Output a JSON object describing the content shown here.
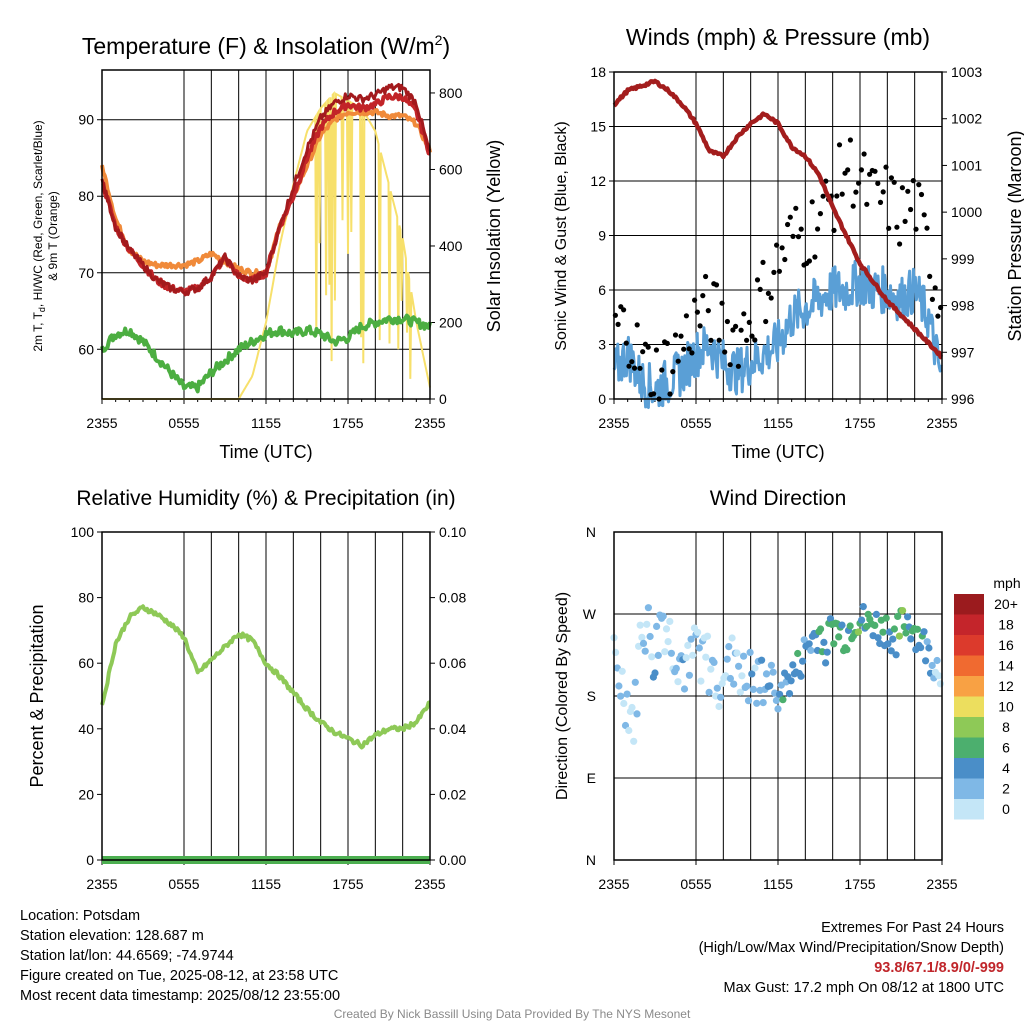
{
  "colors": {
    "red": "#c22428",
    "dark_red": "#a31a1d",
    "orange": "#f08a3a",
    "green": "#4cae41",
    "yellow": "#f7e06b",
    "blue": "#5a9fd6",
    "maroon": "#a31d1d",
    "black": "#000000",
    "rh_green": "#8ec957",
    "precip_green": "#4caf50"
  },
  "x_tick_labels": [
    "2355",
    "0555",
    "1155",
    "1755",
    "2355"
  ],
  "panels": {
    "temperature": {
      "title_main": "Temperature (F) & Insolation (W/m",
      "title_sup": "2",
      "title_end": ")",
      "xlabel": "Time (UTC)",
      "ylabel_line1": "2m T, T",
      "ylabel_sub": "d",
      "ylabel_line1_end": ", HI/WC (Red, Green, Scarlet/Blue)",
      "ylabel_line2": "& 9m T (Orange)",
      "ylabel_right": "Solar Insolation (Yellow)",
      "y_ticks": [
        "60",
        "70",
        "80",
        "90"
      ],
      "y2_ticks": [
        "0",
        "200",
        "400",
        "600",
        "800"
      ]
    },
    "winds": {
      "title": "Winds (mph) & Pressure (mb)",
      "xlabel": "Time (UTC)",
      "ylabel": "Sonic Wind & Gust (Blue, Black)",
      "ylabel_right": "Station Pressure (Maroon)",
      "y_ticks": [
        "0",
        "3",
        "6",
        "9",
        "12",
        "15",
        "18"
      ],
      "y2_ticks": [
        "996",
        "997",
        "998",
        "999",
        "1000",
        "1001",
        "1002",
        "1003"
      ]
    },
    "humidity": {
      "title": "Relative Humidity (%) & Precipitation (in)",
      "ylabel": "Percent & Precipitation",
      "y_ticks": [
        "0",
        "20",
        "40",
        "60",
        "80",
        "100"
      ],
      "y2_ticks": [
        "0.00",
        "0.02",
        "0.04",
        "0.06",
        "0.08",
        "0.10"
      ]
    },
    "direction": {
      "title": "Wind Direction",
      "ylabel": "Direction (Colored By Speed)",
      "y_ticks": [
        "N",
        "E",
        "S",
        "W",
        "N"
      ],
      "colorbar_title": "mph",
      "colorbar_labels": [
        "20+",
        "18",
        "16",
        "14",
        "12",
        "10",
        "8",
        "6",
        "4",
        "2",
        "0"
      ],
      "colorbar_colors": [
        "#9b1b1e",
        "#c4252b",
        "#dc3a2c",
        "#f06a30",
        "#f8a144",
        "#ecde5e",
        "#8ec957",
        "#4caf6e",
        "#4a8ec8",
        "#7fb8e6",
        "#c4e6f7"
      ]
    }
  },
  "chart_data": [
    {
      "type": "line",
      "title": "Temperature (F) & Insolation (W/m2)",
      "xlabel": "Time (UTC)",
      "ylabel": "2m T, Td, HI/WC (Red, Green, Scarlet/Blue) & 9m T (Orange)",
      "ylabel_right": "Solar Insolation (Yellow)",
      "x_hours": [
        0,
        1,
        2,
        3,
        4,
        5,
        6,
        7,
        8,
        9,
        10,
        11,
        12,
        13,
        14,
        15,
        16,
        17,
        18,
        19,
        20,
        21,
        22,
        23,
        24
      ],
      "ylim": [
        53.5,
        96.5
      ],
      "y2lim": [
        0,
        860
      ],
      "series": [
        {
          "values": [
            82,
            76,
            73,
            71,
            69,
            68,
            67.5,
            68,
            69.5,
            72,
            69.5,
            69,
            70,
            76,
            80,
            85,
            89,
            91,
            92,
            91.5,
            92,
            93,
            93,
            91,
            85.5
          ]
        },
        {
          "values": [
            84,
            77,
            73,
            71.5,
            71,
            71,
            71,
            71.5,
            72.5,
            71.5,
            70.5,
            70,
            70,
            76,
            80,
            84,
            88,
            90,
            91,
            91,
            91,
            90.5,
            90.5,
            89.5,
            86
          ]
        },
        {
          "values": [
            60,
            62,
            62.5,
            61,
            59,
            57,
            55,
            55,
            57,
            58.5,
            60,
            61,
            62,
            62.5,
            62,
            62.5,
            62,
            61,
            61.5,
            63,
            63.5,
            64,
            64,
            63.5,
            63
          ]
        },
        {
          "axis": "right",
          "values": [
            0,
            0,
            0,
            0,
            0,
            0,
            0,
            0,
            0,
            0,
            0,
            60,
            200,
            400,
            560,
            700,
            760,
            800,
            780,
            760,
            700,
            560,
            420,
            200,
            30
          ]
        }
      ]
    },
    {
      "type": "line",
      "title": "Winds (mph) & Pressure (mb)",
      "xlabel": "Time (UTC)",
      "ylabel": "Sonic Wind & Gust (Blue, Black)",
      "ylabel_right": "Station Pressure (Maroon)",
      "x_hours": [
        0,
        1,
        2,
        3,
        4,
        5,
        6,
        7,
        8,
        9,
        10,
        11,
        12,
        13,
        14,
        15,
        16,
        17,
        18,
        19,
        20,
        21,
        22,
        23,
        24
      ],
      "ylim": [
        0,
        18
      ],
      "y2lim": [
        996,
        1003
      ],
      "series": [
        {
          "values": [
            1.5,
            2.5,
            1,
            0.5,
            1,
            1.5,
            2.5,
            3,
            2,
            1.5,
            2,
            2.5,
            3,
            4.5,
            5,
            5.5,
            6,
            6,
            6.5,
            6,
            6,
            5.5,
            6,
            4.5,
            1
          ]
        },
        {
          "values": [
            4,
            4,
            2,
            1.5,
            2,
            3,
            4.5,
            5,
            4,
            3.5,
            4.5,
            6,
            7.5,
            9,
            9,
            10,
            11,
            13,
            12,
            11,
            11,
            10,
            11,
            8,
            5
          ]
        },
        {
          "axis": "right",
          "values": [
            1002.3,
            1002.6,
            1002.7,
            1002.8,
            1002.6,
            1002.3,
            1001.9,
            1001.3,
            1001.2,
            1001.6,
            1001.9,
            1002.1,
            1001.9,
            1001.4,
            1001.2,
            1000.8,
            1000.1,
            999.5,
            998.9,
            998.5,
            998.1,
            997.8,
            997.5,
            997.2,
            996.9
          ]
        }
      ]
    },
    {
      "type": "line",
      "title": "Relative Humidity (%) & Precipitation (in)",
      "ylabel": "Percent & Precipitation",
      "x_hours": [
        0,
        1,
        2,
        3,
        4,
        5,
        6,
        7,
        8,
        9,
        10,
        11,
        12,
        13,
        14,
        15,
        16,
        17,
        18,
        19,
        20,
        21,
        22,
        23,
        24
      ],
      "ylim": [
        0,
        100
      ],
      "y2lim": [
        0,
        0.1
      ],
      "series": [
        {
          "values": [
            47,
            66,
            74,
            77,
            75,
            72,
            68,
            57,
            61,
            65,
            69,
            67,
            60,
            56,
            51,
            46,
            42,
            39,
            37,
            35,
            38,
            40,
            40,
            42,
            48
          ]
        },
        {
          "axis": "right",
          "values": [
            0,
            0,
            0,
            0,
            0,
            0,
            0,
            0,
            0,
            0,
            0,
            0,
            0,
            0,
            0,
            0,
            0,
            0,
            0,
            0,
            0,
            0,
            0,
            0,
            0
          ]
        }
      ]
    },
    {
      "type": "scatter",
      "title": "Wind Direction",
      "ylabel": "Direction (Colored By Speed)",
      "x_hours": [
        0,
        0.5,
        1,
        1.5,
        2,
        2.5,
        3,
        3.5,
        4,
        4.5,
        5,
        5.5,
        6,
        6.5,
        7,
        7.5,
        8,
        8.5,
        9,
        9.5,
        10,
        10.5,
        11,
        11.5,
        12,
        12.5,
        13,
        13.5,
        14,
        14.5,
        15,
        15.5,
        16,
        16.5,
        17,
        17.5,
        18,
        18.5,
        19,
        19.5,
        20,
        20.5,
        21,
        21.5,
        22,
        22.5,
        23,
        23.5,
        24
      ],
      "y_direction_deg": [
        210,
        195,
        170,
        150,
        260,
        250,
        220,
        270,
        245,
        230,
        215,
        200,
        240,
        225,
        210,
        195,
        215,
        205,
        230,
        190,
        200,
        185,
        200,
        195,
        185,
        190,
        200,
        210,
        230,
        240,
        250,
        235,
        255,
        250,
        245,
        260,
        265,
        255,
        260,
        250,
        255,
        240,
        255,
        262,
        250,
        240,
        225,
        215,
        205
      ],
      "speed_mph": [
        1,
        1,
        0.5,
        0.5,
        1,
        1,
        2,
        1,
        1,
        1,
        2,
        1,
        1,
        1,
        0.5,
        1,
        1,
        1,
        1,
        1,
        2,
        2,
        2,
        3,
        3,
        4,
        3,
        4,
        3,
        4,
        5,
        4,
        6,
        5,
        6,
        5,
        6,
        5,
        6,
        5,
        6,
        5,
        6,
        6,
        5,
        4,
        3,
        2,
        2
      ],
      "ylim_labels": [
        "N",
        "E",
        "S",
        "W",
        "N"
      ]
    }
  ],
  "footer": {
    "location": "Location: Potsdam",
    "elevation": "Station elevation: 128.687 m",
    "latlon": "Station lat/lon: 44.6569; -74.9744",
    "created": "Figure created on Tue, 2025-08-12, at 23:58 UTC",
    "recent": "Most recent data timestamp: 2025/08/12 23:55:00",
    "extremes_title": "Extremes For Past 24 Hours",
    "extremes_desc": "(High/Low/Max Wind/Precipitation/Snow Depth)",
    "extremes_values": "93.8/67.1/8.9/0/-999",
    "max_gust": "Max Gust: 17.2 mph On 08/12 at 1800 UTC",
    "credit": "Created By Nick Bassill Using Data Provided By The NYS Mesonet"
  }
}
